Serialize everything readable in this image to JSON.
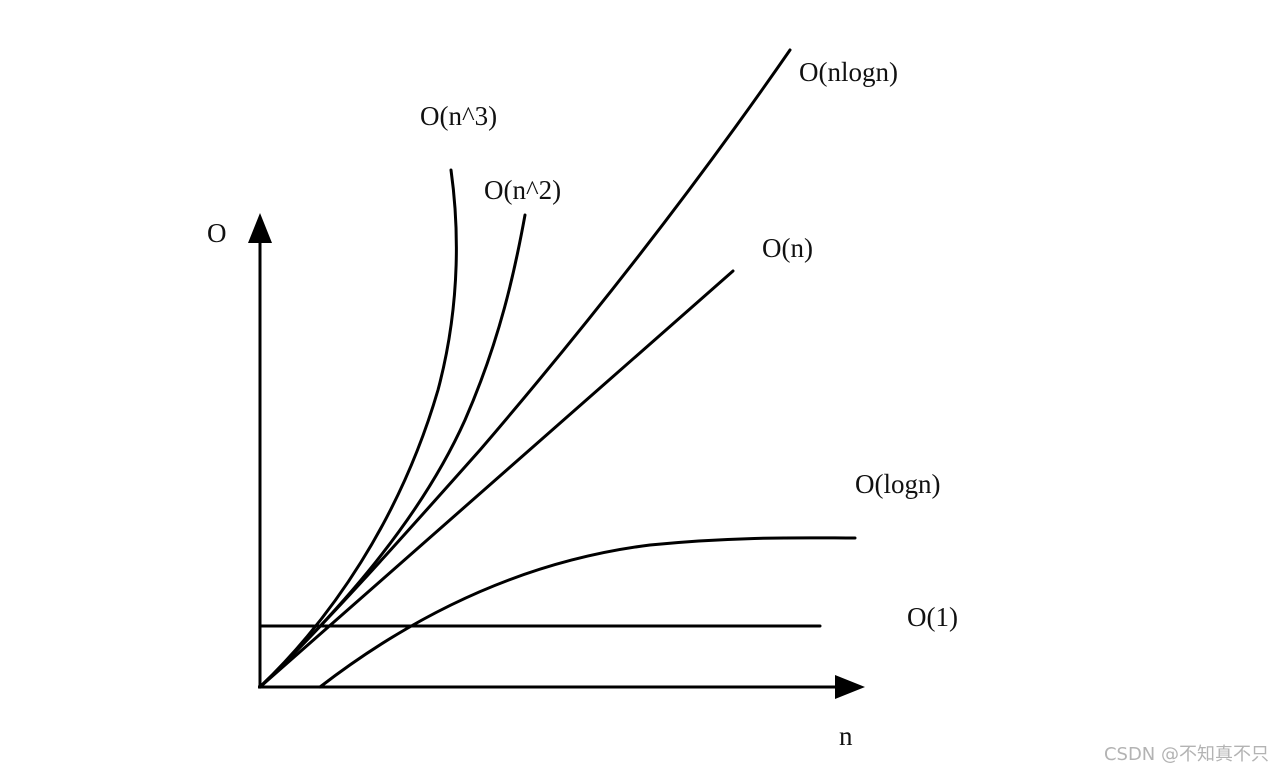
{
  "diagram": {
    "axes": {
      "y_label": "O",
      "x_label": "n"
    },
    "curves": [
      {
        "id": "o-n3",
        "label": "O(n^3)"
      },
      {
        "id": "o-n2",
        "label": "O(n^2)"
      },
      {
        "id": "o-nlogn",
        "label": "O(nlogn)"
      },
      {
        "id": "o-n",
        "label": "O(n)"
      },
      {
        "id": "o-logn",
        "label": "O(logn)"
      },
      {
        "id": "o-1",
        "label": "O(1)"
      }
    ]
  },
  "watermark": {
    "text": "CSDN @不知真不只"
  },
  "colors": {
    "ink": "#000000",
    "watermark": "#b3b3b3",
    "background": "#ffffff"
  }
}
